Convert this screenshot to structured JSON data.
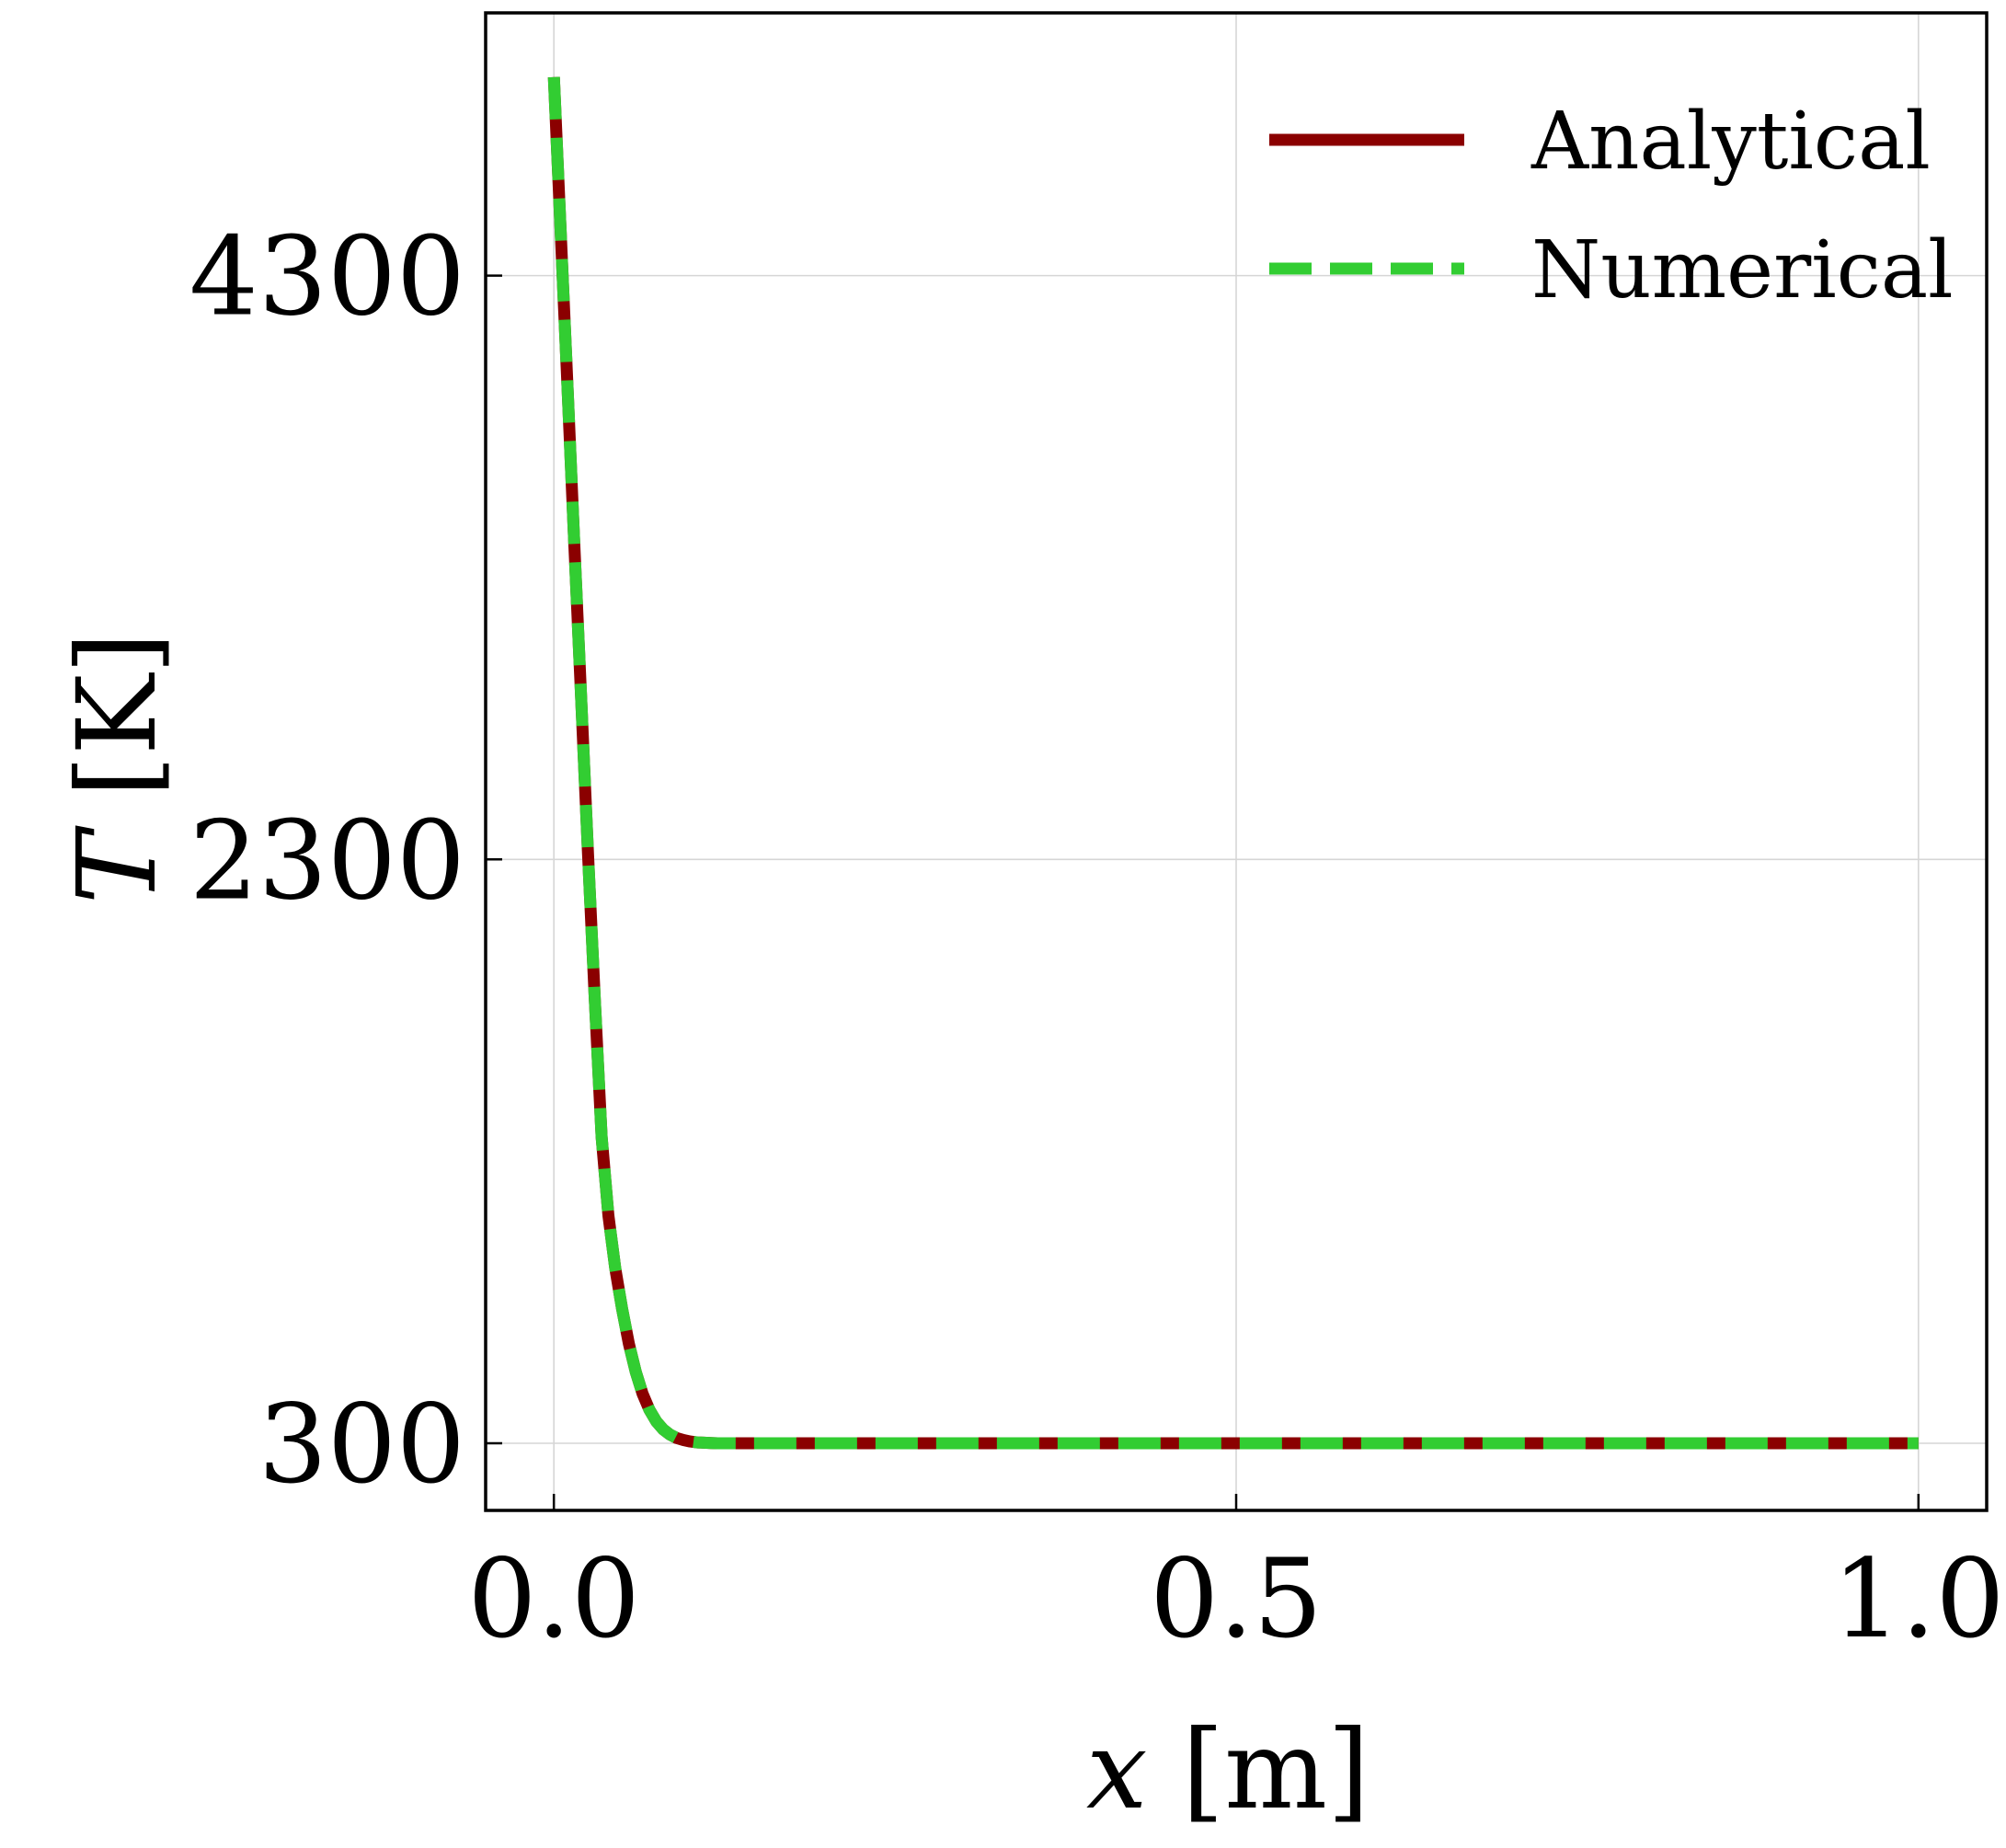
{
  "chart_data": {
    "type": "line",
    "title": "",
    "xlabel": {
      "var": "x",
      "unit": " [m]"
    },
    "ylabel": {
      "var": "T",
      "unit": " [K]"
    },
    "xlim": [
      -0.05,
      1.05
    ],
    "ylim": [
      70,
      5200
    ],
    "xticks": [
      0.0,
      0.5,
      1.0
    ],
    "xtick_labels": [
      "0.0",
      "0.5",
      "1.0"
    ],
    "yticks": [
      300,
      2300,
      4300
    ],
    "ytick_labels": [
      "300",
      "2300",
      "4300"
    ],
    "grid": true,
    "legend_position": "upper-right",
    "series": [
      {
        "name": "Analytical",
        "style": "solid",
        "color": "#8b0000",
        "x": [
          0.0,
          0.005,
          0.01,
          0.015,
          0.02,
          0.025,
          0.03,
          0.035,
          0.04,
          0.045,
          0.05,
          0.055,
          0.06,
          0.065,
          0.07,
          0.075,
          0.08,
          0.085,
          0.09,
          0.095,
          0.1,
          0.105,
          0.11,
          0.115,
          0.12,
          0.15,
          0.2,
          0.3,
          0.4,
          0.5,
          0.6,
          0.7,
          0.8,
          0.9,
          1.0
        ],
        "y": [
          4980,
          4450,
          3920,
          3380,
          2850,
          2320,
          1820,
          1350,
          1080,
          900,
          760,
          640,
          545,
          470,
          415,
          375,
          348,
          330,
          318,
          311,
          306,
          303,
          302,
          301,
          300,
          300,
          300,
          300,
          300,
          300,
          300,
          300,
          300,
          300,
          300
        ]
      },
      {
        "name": "Numerical",
        "style": "dashed",
        "color": "#32cd32",
        "x": [
          0.0,
          0.005,
          0.01,
          0.015,
          0.02,
          0.025,
          0.03,
          0.035,
          0.04,
          0.045,
          0.05,
          0.055,
          0.06,
          0.065,
          0.07,
          0.075,
          0.08,
          0.085,
          0.09,
          0.095,
          0.1,
          0.105,
          0.11,
          0.115,
          0.12,
          0.15,
          0.2,
          0.3,
          0.4,
          0.5,
          0.6,
          0.7,
          0.8,
          0.9,
          1.0
        ],
        "y": [
          4980,
          4450,
          3920,
          3380,
          2850,
          2320,
          1820,
          1350,
          1080,
          900,
          760,
          640,
          545,
          470,
          415,
          375,
          348,
          330,
          318,
          311,
          306,
          303,
          302,
          301,
          300,
          300,
          300,
          300,
          300,
          300,
          300,
          300,
          300,
          300,
          300
        ]
      }
    ]
  }
}
